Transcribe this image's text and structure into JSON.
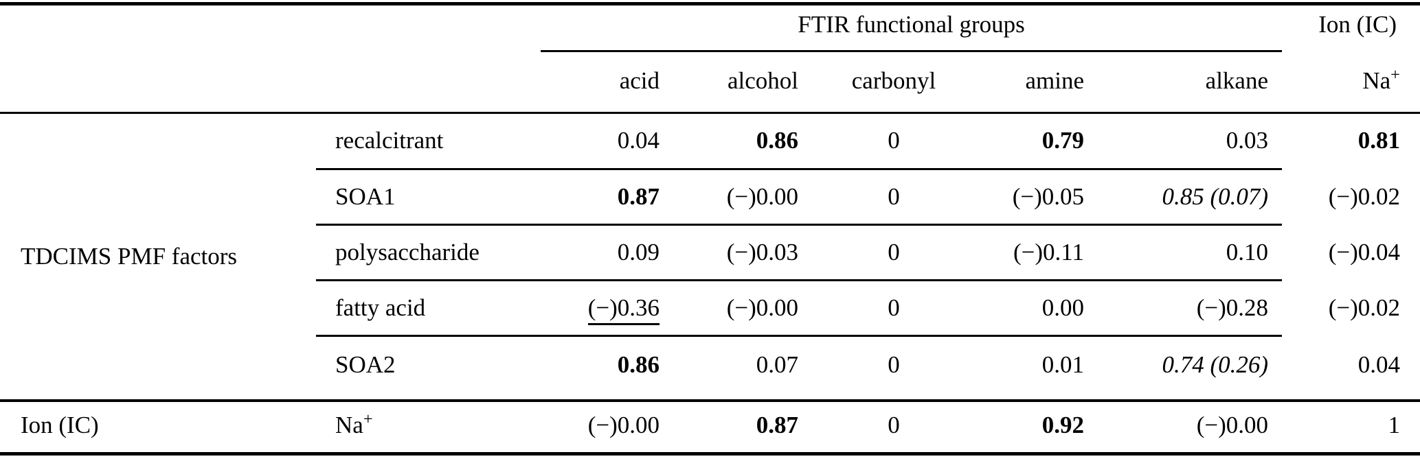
{
  "colors": {
    "text": "#000000",
    "background": "#ffffff",
    "rule": "#000000"
  },
  "table": {
    "group_header_ftir": "FTIR functional groups",
    "group_header_ion": "Ion (IC)",
    "col_headers": {
      "acid": "acid",
      "alcohol": "alcohol",
      "carbonyl": "carbonyl",
      "amine": "amine",
      "alkane": "alkane"
    },
    "na_header": {
      "base": "Na",
      "sup": "+"
    },
    "row_group_label": "TDCIMS PMF factors",
    "ion_row_group_label": "Ion (IC)",
    "rows": [
      {
        "label": "recalcitrant",
        "acid": "0.04",
        "alcohol": "0.86",
        "carbonyl": "0",
        "amine": "0.79",
        "alkane": "0.03",
        "na": "0.81"
      },
      {
        "label": "SOA1",
        "acid": "0.87",
        "alcohol": "(−)0.00",
        "carbonyl": "0",
        "amine": "(−)0.05",
        "alkane": "0.85 (0.07)",
        "na": "(−)0.02"
      },
      {
        "label": "polysaccharide",
        "acid": "0.09",
        "alcohol": "(−)0.03",
        "carbonyl": "0",
        "amine": "(−)0.11",
        "alkane": "0.10",
        "na": "(−)0.04"
      },
      {
        "label": "fatty acid",
        "acid": "(−)0.36",
        "alcohol": "(−)0.00",
        "carbonyl": "0",
        "amine": "0.00",
        "alkane": "(−)0.28",
        "na": "(−)0.02"
      },
      {
        "label": "SOA2",
        "acid": "0.86",
        "alcohol": "0.07",
        "carbonyl": "0",
        "amine": "0.01",
        "alkane": "0.74 (0.26)",
        "na": "0.04"
      }
    ],
    "ion_row": {
      "label_base": "Na",
      "label_sup": "+",
      "acid": "(−)0.00",
      "alcohol": "0.87",
      "carbonyl": "0",
      "amine": "0.92",
      "alkane": "(−)0.00",
      "na": "1"
    }
  }
}
